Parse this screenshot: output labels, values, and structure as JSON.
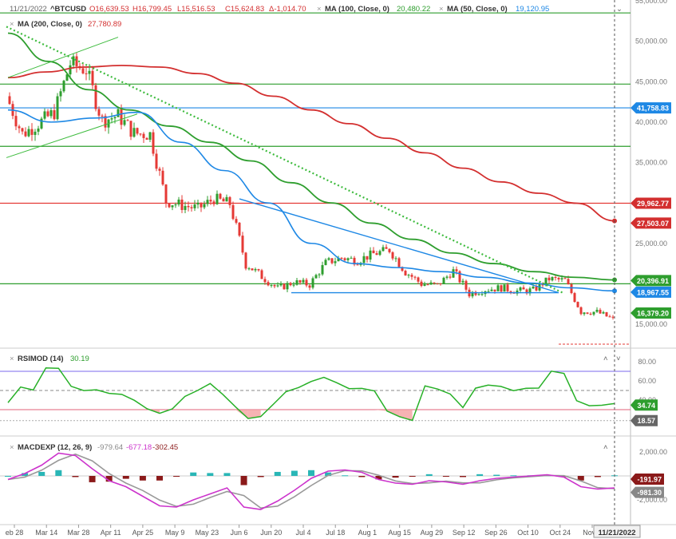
{
  "header": {
    "date": "11/21/2022",
    "symbol": "^BTCUSD",
    "open": "O16,639.53",
    "high": "H16,799.45",
    "low": "L15,516.53",
    "close": "C15,624.83",
    "change": "Δ-1,014.70",
    "ma100_label": "MA (100, Close, 0)",
    "ma100_value": "20,480.22",
    "ma50_label": "MA (50, Close, 0)",
    "ma50_value": "19,120.95",
    "ma200_label": "MA (200, Close, 0)",
    "ma200_value": "27,780.89",
    "close_x": "×"
  },
  "rsi_header": {
    "label": "RSIMOD (14)",
    "value": "30.19"
  },
  "macd_header": {
    "label": "MACDEXP (12, 26, 9)",
    "v1": "-979.64",
    "v2": "-677.18",
    "v3": "-302.45"
  },
  "price_axis": [
    "55,000.00",
    "50,000.00",
    "45,000.00",
    "40,000.00",
    "35,000.00",
    "25,000.00",
    "15,000.00"
  ],
  "price_tags": [
    {
      "text": "41,758.83",
      "color": "#1e88e5",
      "value": 41758.83
    },
    {
      "text": "29,962.77",
      "color": "#d32f2f",
      "value": 29962.77
    },
    {
      "text": "27,503.07",
      "color": "#d32f2f",
      "value": 27503.07
    },
    {
      "text": "20,396.91",
      "color": "#2e9e2e",
      "value": 20396.91
    },
    {
      "text": "18,967.55",
      "color": "#1e88e5",
      "value": 18967.55
    },
    {
      "text": "16,379.20",
      "color": "#2e9e2e",
      "value": 16379.2
    }
  ],
  "rsi_axis": [
    "80.00",
    "60.00",
    "40.00"
  ],
  "rsi_tags": [
    {
      "text": "34.74",
      "color": "#2e9e2e",
      "value": 34.74
    },
    {
      "text": "18.57",
      "color": "#666666",
      "value": 18.57
    }
  ],
  "macd_axis": [
    "2,000.00",
    "-2,000.00"
  ],
  "macd_tags": [
    {
      "text": "-191.97",
      "color": "#8b1a1a",
      "value": -191.97
    },
    {
      "text": "-981.30",
      "color": "#888888",
      "value": -981.3
    }
  ],
  "x_labels": [
    "eb 28",
    "Mar 14",
    "Mar 28",
    "Apr 11",
    "Apr 25",
    "May 9",
    "May 23",
    "Jun 6",
    "Jun 20",
    "Jul 4",
    "Jul 18",
    "Aug 1",
    "Aug 15",
    "Aug 29",
    "Sep 12",
    "Sep 26",
    "Oct 10",
    "Oct 24",
    "Nov 7"
  ],
  "x_cursor_label": "11/21/2022",
  "colors": {
    "up": "#2e9e2e",
    "down": "#e53935",
    "ma200": "#d32f2f",
    "ma100": "#2e9e2e",
    "ma50": "#1e88e5",
    "rsi": "#27b027",
    "macd": "#cc33cc",
    "signal": "#999999",
    "hist_pos": "#29b6b6",
    "hist_neg": "#8b1a1a"
  },
  "chart_data": {
    "type": "candlestick",
    "title": "^BTCUSD",
    "price_range": [
      14000,
      56000
    ],
    "last_bar": {
      "date": "11/21/2022",
      "open": 16639.53,
      "high": 16799.45,
      "low": 15516.53,
      "close": 15624.83,
      "change": -1014.7
    },
    "moving_averages": [
      {
        "name": "MA (200, Close, 0)",
        "last": 27780.89
      },
      {
        "name": "MA (100, Close, 0)",
        "last": 20480.22
      },
      {
        "name": "MA (50, Close, 0)",
        "last": 19120.95
      }
    ],
    "horizontal_levels": [
      53500,
      44700,
      41758.83,
      37000,
      29962.77,
      20000
    ],
    "close_series": [
      {
        "date": "Feb 28",
        "close": 43200
      },
      {
        "date": "Mar 7",
        "close": 38500
      },
      {
        "date": "Mar 14",
        "close": 39800
      },
      {
        "date": "Mar 21",
        "close": 41200
      },
      {
        "date": "Mar 28",
        "close": 47200
      },
      {
        "date": "Apr 4",
        "close": 46500
      },
      {
        "date": "Apr 11",
        "close": 40200
      },
      {
        "date": "Apr 18",
        "close": 40800
      },
      {
        "date": "Apr 25",
        "close": 38600
      },
      {
        "date": "May 2",
        "close": 38500
      },
      {
        "date": "May 9",
        "close": 30200
      },
      {
        "date": "May 16",
        "close": 29700
      },
      {
        "date": "May 23",
        "close": 29300
      },
      {
        "date": "May 30",
        "close": 30500
      },
      {
        "date": "Jun 6",
        "close": 29900
      },
      {
        "date": "Jun 13",
        "close": 22500
      },
      {
        "date": "Jun 20",
        "close": 20900
      },
      {
        "date": "Jun 27",
        "close": 19400
      },
      {
        "date": "Jul 4",
        "close": 20200
      },
      {
        "date": "Jul 11",
        "close": 19900
      },
      {
        "date": "Jul 18",
        "close": 22600
      },
      {
        "date": "Jul 25",
        "close": 23200
      },
      {
        "date": "Aug 1",
        "close": 22900
      },
      {
        "date": "Aug 8",
        "close": 23700
      },
      {
        "date": "Aug 15",
        "close": 24200
      },
      {
        "date": "Aug 22",
        "close": 21500
      },
      {
        "date": "Aug 29",
        "close": 20000
      },
      {
        "date": "Sep 5",
        "close": 19800
      },
      {
        "date": "Sep 12",
        "close": 21600
      },
      {
        "date": "Sep 19",
        "close": 18800
      },
      {
        "date": "Sep 26",
        "close": 19300
      },
      {
        "date": "Oct 3",
        "close": 19500
      },
      {
        "date": "Oct 10",
        "close": 19100
      },
      {
        "date": "Oct 17",
        "close": 19200
      },
      {
        "date": "Oct 24",
        "close": 20600
      },
      {
        "date": "Oct 31",
        "close": 20400
      },
      {
        "date": "Nov 7",
        "close": 16600
      },
      {
        "date": "Nov 14",
        "close": 16500
      },
      {
        "date": "Nov 21",
        "close": 15624.83
      }
    ],
    "ma200_series": [
      45500,
      46200,
      46800,
      47000,
      46800,
      46000,
      44800,
      43200,
      41500,
      39800,
      38000,
      36200,
      34300,
      32600,
      31200,
      29962.77,
      27780.89
    ],
    "ma100_series": [
      51000,
      47500,
      44000,
      41500,
      39500,
      37500,
      35200,
      32500,
      30000,
      27500,
      25500,
      23800,
      22500,
      21500,
      20800,
      20480.22
    ],
    "ma50_series": [
      41500,
      40000,
      40500,
      41200,
      37500,
      34000,
      30000,
      25000,
      22500,
      22000,
      21500,
      20800,
      20100,
      19500,
      19120.95
    ],
    "rsi": {
      "name": "RSIMOD (14)",
      "last": 30.19,
      "levels": [
        70,
        50,
        30
      ],
      "axis": [
        80,
        60,
        40
      ]
    },
    "macd": {
      "name": "MACDEXP (12, 26, 9)",
      "values": [
        -979.64,
        -677.18,
        -302.45
      ],
      "axis": [
        2000,
        -2000
      ]
    }
  }
}
